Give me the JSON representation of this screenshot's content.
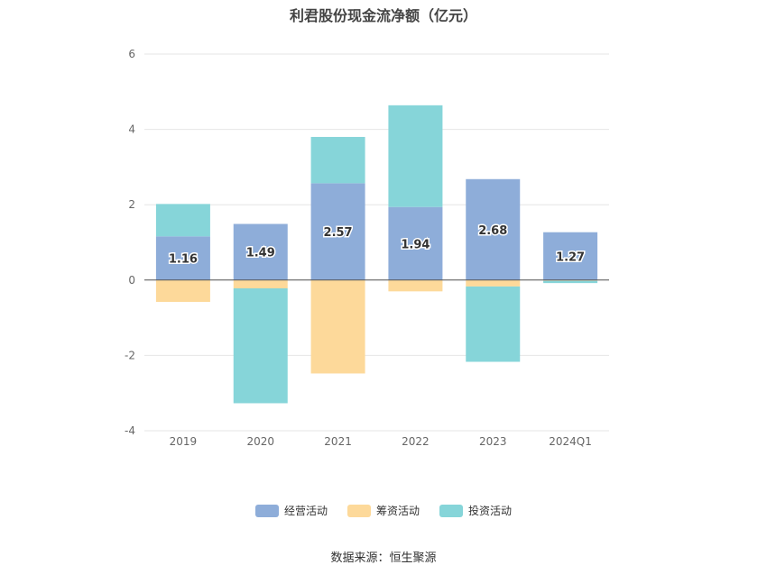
{
  "title": "利君股份现金流净额（亿元）",
  "source": "数据来源：恒生聚源",
  "legend": [
    {
      "label": "经营活动",
      "color": "#8eadd9"
    },
    {
      "label": "筹资活动",
      "color": "#fdd99a"
    },
    {
      "label": "投资活动",
      "color": "#86d5d9"
    }
  ],
  "chart_data": {
    "type": "bar",
    "stacked": true,
    "categories": [
      "2019",
      "2020",
      "2021",
      "2022",
      "2023",
      "2024Q1"
    ],
    "ylim": [
      -4,
      6
    ],
    "yticks": [
      6,
      4,
      2,
      0,
      -2,
      -4
    ],
    "grid": true,
    "legend_position": "bottom",
    "series": [
      {
        "name": "经营活动",
        "color": "#8eadd9",
        "values": [
          1.16,
          1.49,
          2.57,
          1.94,
          2.68,
          1.27
        ],
        "labels": [
          "1.16",
          "1.49",
          "2.57",
          "1.94",
          "2.68",
          "1.27"
        ]
      },
      {
        "name": "筹资活动",
        "color": "#fdd99a",
        "values": [
          -0.58,
          -0.22,
          -2.48,
          -0.3,
          -0.17,
          -0.02
        ]
      },
      {
        "name": "投资活动",
        "color": "#86d5d9",
        "values": [
          0.86,
          -3.05,
          1.23,
          2.7,
          -2.0,
          -0.06
        ]
      }
    ]
  }
}
